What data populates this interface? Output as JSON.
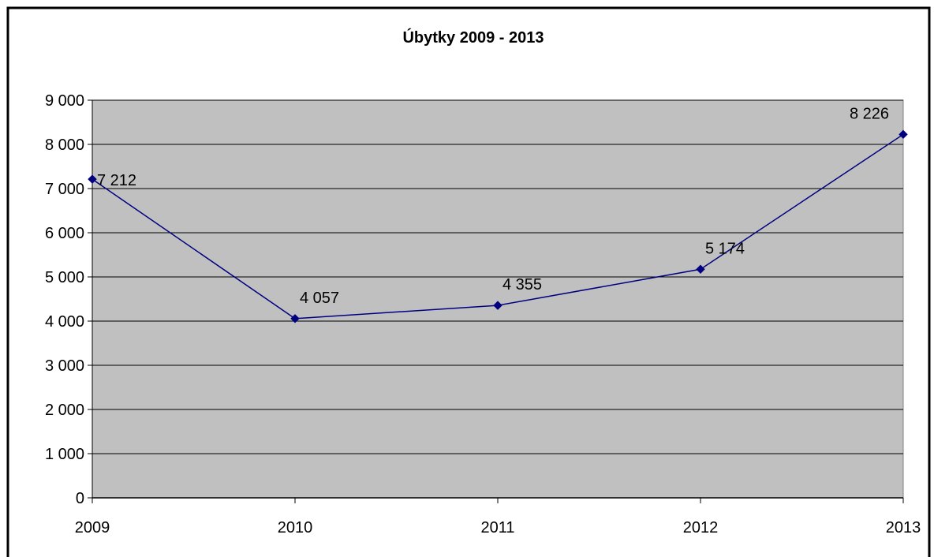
{
  "chart_data": {
    "type": "line",
    "title": "Úbytky 2009 - 2013",
    "xlabel": "",
    "ylabel": "",
    "categories": [
      "2009",
      "2010",
      "2011",
      "2012",
      "2013"
    ],
    "series": [
      {
        "values": [
          7212,
          4057,
          4355,
          5174,
          8226
        ],
        "data_labels": [
          "7 212",
          "4 057",
          "4 355",
          "5 174",
          "8 226"
        ],
        "color": "#000080",
        "marker": "diamond"
      }
    ],
    "ylim": [
      0,
      9000
    ],
    "y_ticks": [
      0,
      1000,
      2000,
      3000,
      4000,
      5000,
      6000,
      7000,
      8000,
      9000
    ],
    "y_tick_labels": [
      "0",
      "1 000",
      "2 000",
      "3 000",
      "4 000",
      "5 000",
      "6 000",
      "7 000",
      "8 000",
      "9 000"
    ],
    "grid": true,
    "legend": "none",
    "plot_background": "#C0C0C0",
    "gridline_color": "#000000"
  }
}
